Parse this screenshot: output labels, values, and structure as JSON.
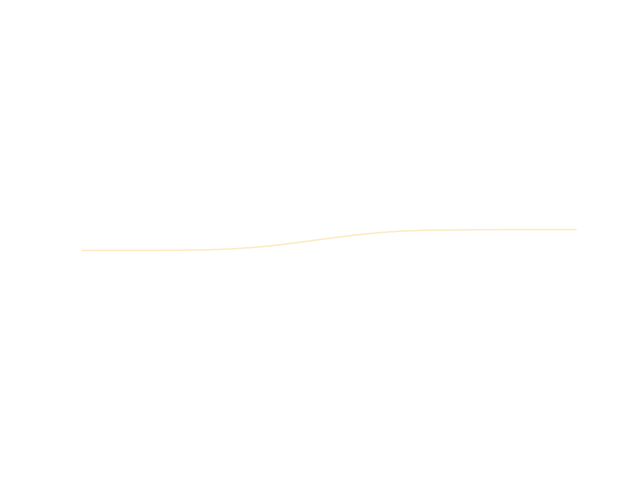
{
  "chart_data": {
    "type": "line",
    "grid": false,
    "axes_visible": false,
    "legend": "none",
    "series": [
      {
        "color": "#FCEBC4",
        "x": [
          0,
          0.1,
          0.2,
          0.25,
          0.3,
          0.35,
          0.4,
          0.45,
          0.5,
          0.55,
          0.6,
          0.65,
          0.7,
          0.8,
          0.9,
          1.0
        ],
        "y": [
          0,
          0.0,
          0.01,
          0.03,
          0.07,
          0.15,
          0.27,
          0.42,
          0.58,
          0.73,
          0.85,
          0.93,
          0.97,
          0.99,
          1.0,
          1.0
        ]
      }
    ],
    "xlim": [
      0,
      1
    ],
    "ylim": [
      -8.2,
      9.2
    ]
  }
}
